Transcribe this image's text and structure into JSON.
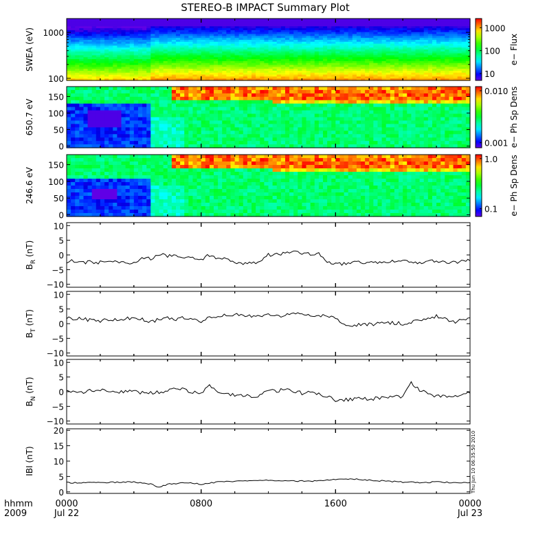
{
  "title": "STEREO-B IMPACT Summary Plot",
  "footer": {
    "time_label": "hhmm",
    "year": "2009",
    "stamp": "Thu Jun 10 06:35:50 2010"
  },
  "chart_data": [
    {
      "type": "heatmap",
      "ylabel": "SWEA (eV)",
      "y_scale": "log",
      "ylim": [
        90,
        2000
      ],
      "yticks": [
        100,
        1000
      ],
      "ytick_labels": [
        "100",
        "1000"
      ],
      "colorbar": {
        "label": "e− Flux",
        "scale": "log",
        "range": [
          5,
          2500
        ],
        "ticks": [
          10,
          100,
          1000
        ],
        "tick_labels": [
          "10",
          "100",
          "1000"
        ]
      },
      "x_hours": [
        0,
        5,
        24
      ],
      "profile_low": [
        200,
        350,
        350
      ],
      "colormap": "rainbow"
    },
    {
      "type": "heatmap",
      "ylabel": "650.7 eV",
      "ylim": [
        -5,
        180
      ],
      "yticks": [
        0,
        50,
        100,
        150
      ],
      "ytick_labels": [
        "0",
        "50",
        "100",
        "150"
      ],
      "colorbar": {
        "label": "e− Ph Sp Dens",
        "scale": "log",
        "range": [
          0.0008,
          0.012
        ],
        "ticks": [
          0.001,
          0.01
        ],
        "tick_labels": [
          "0.001",
          "0.010"
        ]
      },
      "colormap": "rainbow"
    },
    {
      "type": "heatmap",
      "ylabel": "246.6 eV",
      "ylim": [
        -5,
        180
      ],
      "yticks": [
        0,
        50,
        100,
        150
      ],
      "ytick_labels": [
        "0",
        "50",
        "100",
        "150"
      ],
      "colorbar": {
        "label": "e− Ph Sp Dens",
        "scale": "log",
        "range": [
          0.07,
          1.2
        ],
        "ticks": [
          0.1,
          1.0
        ],
        "tick_labels": [
          "0.1",
          "1.0"
        ]
      },
      "colormap": "rainbow"
    },
    {
      "type": "line",
      "ylabel": "B",
      "ylabel_sub": "R",
      "ylabel_unit": "(nT)",
      "ylim": [
        -11,
        11
      ],
      "yticks": [
        -10,
        -5,
        0,
        5,
        10
      ],
      "ytick_labels": [
        "−10",
        "−5",
        "0",
        "5",
        "10"
      ],
      "x_hours": [
        0,
        0.3,
        0.6,
        1,
        2,
        3,
        4,
        4.6,
        5,
        5.3,
        5.6,
        6,
        6.5,
        7,
        7.5,
        8,
        8.5,
        9,
        9.5,
        10,
        10.5,
        11,
        11.5,
        12,
        12.5,
        13,
        13.5,
        14,
        14.5,
        15,
        15.5,
        16,
        16.5,
        17,
        18,
        19,
        20,
        21,
        22,
        23,
        24
      ],
      "y": [
        -2.5,
        -2,
        -3,
        -2.5,
        -2.5,
        -2.5,
        -2.8,
        -1,
        -1.5,
        0,
        0.5,
        -0.5,
        0,
        -1,
        -1,
        -1.5,
        0,
        -1,
        -1,
        -2.5,
        -2.8,
        -2.8,
        -2.5,
        0,
        0.5,
        0.5,
        1,
        0.5,
        0.5,
        0.5,
        -2.5,
        -3,
        -3,
        -2.5,
        -2.5,
        -2.5,
        -2,
        -2.5,
        -2,
        -2.5,
        -2
      ]
    },
    {
      "type": "line",
      "ylabel": "B",
      "ylabel_sub": "T",
      "ylabel_unit": "(nT)",
      "ylim": [
        -11,
        11
      ],
      "yticks": [
        -10,
        -5,
        0,
        5,
        10
      ],
      "ytick_labels": [
        "−10",
        "−5",
        "0",
        "5",
        "10"
      ],
      "x_hours": [
        0,
        1,
        2,
        2.5,
        3,
        4,
        4.5,
        5,
        5.5,
        6,
        6.5,
        7,
        7.5,
        8,
        8.5,
        9,
        9.5,
        10,
        11,
        11.5,
        12,
        12.5,
        13,
        14,
        14.5,
        15,
        15.5,
        16,
        16.5,
        17,
        18,
        19,
        20,
        21,
        22,
        22.5,
        23,
        24
      ],
      "y": [
        2,
        1.5,
        1,
        1.5,
        1.5,
        2,
        1.5,
        0.5,
        1.5,
        2,
        1.5,
        2,
        2,
        0,
        2.5,
        2.5,
        3,
        3,
        2.5,
        2.5,
        3,
        2.5,
        3,
        3.5,
        3,
        3,
        2.5,
        1.5,
        0,
        -0.5,
        -0.3,
        0.5,
        0,
        1,
        2.5,
        2,
        0.5,
        2
      ]
    },
    {
      "type": "line",
      "ylabel": "B",
      "ylabel_sub": "N",
      "ylabel_unit": "(nT)",
      "ylim": [
        -11,
        11
      ],
      "yticks": [
        -10,
        -5,
        0,
        5,
        10
      ],
      "ytick_labels": [
        "−10",
        "−5",
        "0",
        "5",
        "10"
      ],
      "x_hours": [
        0,
        0.5,
        1,
        1.5,
        2,
        3,
        4,
        5,
        6,
        6.5,
        7,
        8,
        8.5,
        9,
        9.5,
        10,
        11,
        11.5,
        12,
        12.5,
        13,
        14,
        14.5,
        15,
        15.5,
        16,
        17,
        18,
        19,
        20,
        20.5,
        21,
        21.5,
        22,
        23,
        24
      ],
      "y": [
        1,
        -0.5,
        0,
        0.5,
        0.5,
        0,
        0,
        -0.5,
        0,
        1.5,
        0.5,
        -0.5,
        2,
        0,
        -1,
        -1,
        -1.5,
        -1.5,
        0.5,
        0,
        1,
        -0.5,
        0,
        -1,
        -1.5,
        -3,
        -2.5,
        -2.5,
        -2,
        -1.5,
        3,
        0.5,
        -0.5,
        -1.5,
        -1.5,
        -0.5
      ]
    },
    {
      "type": "line",
      "ylabel": "IBI",
      "ylabel_unit": "(nT)",
      "ylim": [
        -0.5,
        20.5
      ],
      "yticks": [
        0,
        5,
        10,
        15,
        20
      ],
      "ytick_labels": [
        "0",
        "5",
        "10",
        "15",
        "20"
      ],
      "x_hours": [
        0,
        2,
        4,
        5,
        5.5,
        6,
        7,
        8,
        9,
        10,
        11,
        12,
        14,
        15,
        16,
        17,
        18,
        19,
        20,
        21,
        22,
        23,
        24
      ],
      "y": [
        3,
        3,
        3.2,
        2.5,
        1.5,
        2.5,
        3,
        2.5,
        3.2,
        3.5,
        3.5,
        3.8,
        3.5,
        3.5,
        4,
        4.2,
        3.8,
        3.5,
        3.2,
        3,
        3.2,
        3,
        3
      ]
    }
  ],
  "x_axis": {
    "range_hours": [
      0,
      24
    ],
    "ticks_hours": [
      0,
      8,
      16,
      24
    ],
    "tick_labels": [
      "0000",
      "0800",
      "1600",
      "0000"
    ],
    "date_labels": [
      "Jul 22",
      "",
      "",
      "Jul 23"
    ]
  }
}
